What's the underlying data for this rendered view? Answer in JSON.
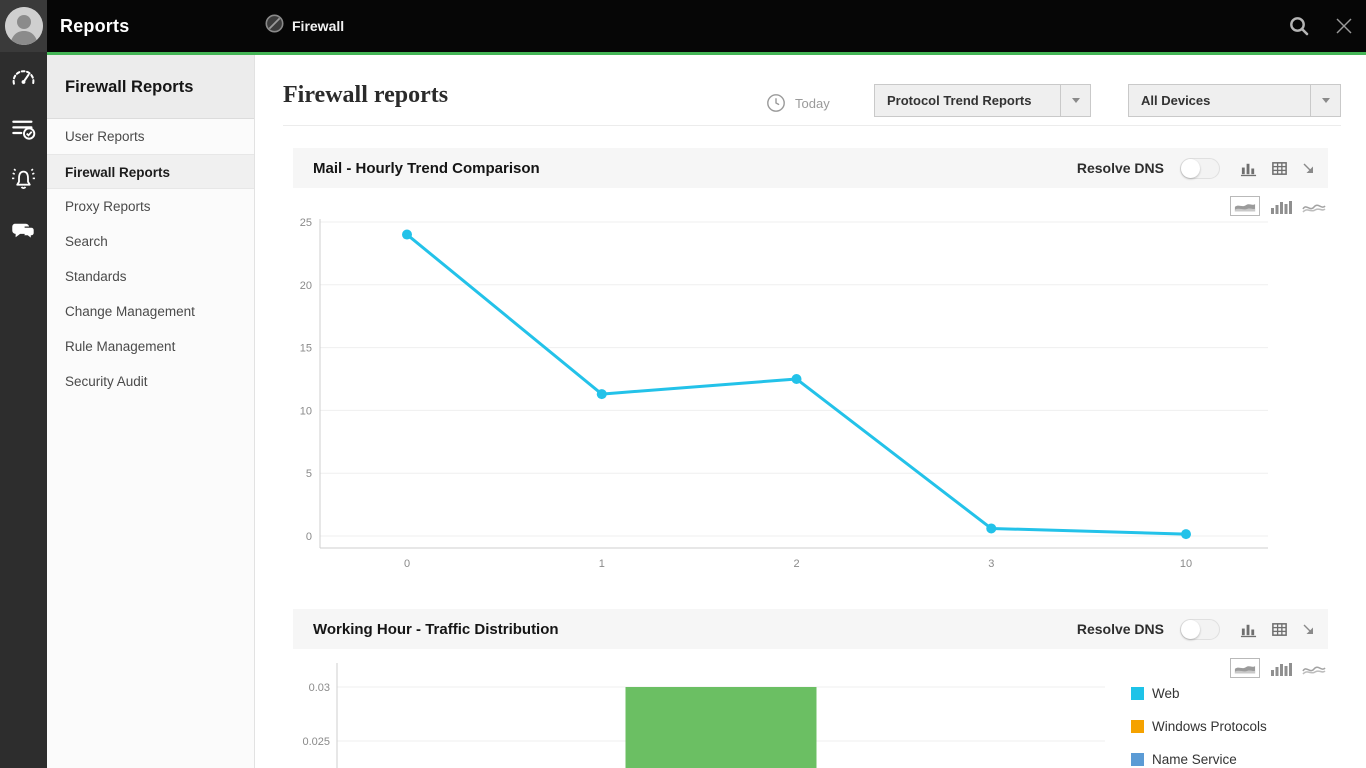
{
  "topbar": {
    "app_title": "Reports",
    "tab_label": "Firewall"
  },
  "rail": {
    "icons": [
      "gauge",
      "report-list",
      "alert-bell",
      "chat"
    ]
  },
  "sidebar": {
    "header": "Firewall Reports",
    "items": [
      {
        "label": "User Reports",
        "selected": false
      },
      {
        "label": "Firewall Reports",
        "selected": true
      },
      {
        "label": "Proxy Reports",
        "selected": false
      },
      {
        "label": "Search",
        "selected": false
      },
      {
        "label": "Standards",
        "selected": false
      },
      {
        "label": "Change Management",
        "selected": false
      },
      {
        "label": "Rule Management",
        "selected": false
      },
      {
        "label": "Security Audit",
        "selected": false
      }
    ]
  },
  "main": {
    "page_title": "Firewall reports",
    "time_filter_label": "Today",
    "report_dropdown_value": "Protocol Trend Reports",
    "device_dropdown_value": "All Devices"
  },
  "panels": [
    {
      "title": "Mail - Hourly Trend Comparison",
      "resolve_dns_label": "Resolve DNS",
      "resolve_dns_on": false
    },
    {
      "title": "Working Hour - Traffic Distribution",
      "resolve_dns_label": "Resolve DNS",
      "resolve_dns_on": false
    }
  ],
  "colors": {
    "accent_green": "#44b556",
    "topbar_black": "#060606",
    "rail_gray": "#2d2d2d",
    "line_cyan": "#23c2e9",
    "bar_green": "#6bbf63"
  },
  "chart_data": [
    {
      "type": "line",
      "title": "Mail - Hourly Trend Comparison",
      "categories": [
        "0",
        "1",
        "2",
        "3",
        "10"
      ],
      "values": [
        24,
        11.3,
        12.5,
        0.6,
        0.15
      ],
      "xlabel": "",
      "ylabel": "",
      "ylim": [
        0,
        25
      ],
      "yticks": [
        0,
        5,
        10,
        15,
        20,
        25
      ],
      "grid": true,
      "legend_position": "none",
      "line_color": "#23c2e9",
      "marker": "circle"
    },
    {
      "type": "bar",
      "title": "Working Hour - Traffic Distribution",
      "visible_yticks": [
        0.03,
        0.025
      ],
      "bars": [
        {
          "value": 0.03,
          "color": "#6bbf63",
          "cropped_at_bottom": true
        }
      ],
      "grid": true,
      "legend_position": "right",
      "legend": [
        {
          "label": "Web",
          "color": "#1ec3e8"
        },
        {
          "label": "Windows Protocols",
          "color": "#f5a200"
        },
        {
          "label": "Name Service",
          "color": "#5b9bd5"
        }
      ]
    }
  ]
}
